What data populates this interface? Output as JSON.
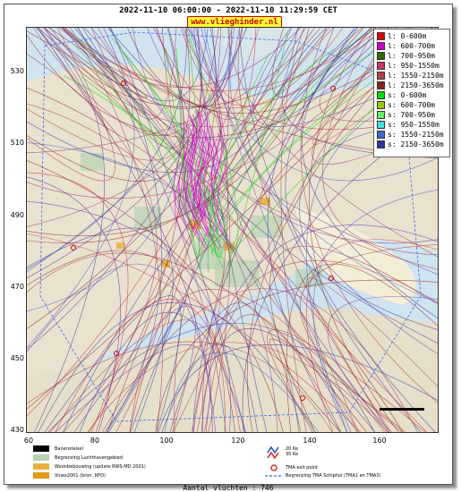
{
  "header": {
    "title": "2022-11-10 06:00:00 - 2022-11-10 11:29:59 CET",
    "site_label": "www.vlieghinder.nl"
  },
  "axes": {
    "y_ticks": [
      "530",
      "510",
      "490",
      "470",
      "450",
      "430"
    ],
    "x_ticks": [
      "60",
      "80",
      "100",
      "120",
      "140",
      "160"
    ]
  },
  "legend": {
    "items": [
      {
        "label": "l: 0-600m",
        "color": "#dd0000"
      },
      {
        "label": "l: 600-700m",
        "color": "#cc00cc"
      },
      {
        "label": "l: 700-950m",
        "color": "#336600"
      },
      {
        "label": "l: 950-1550m",
        "color": "#cc3366"
      },
      {
        "label": "l: 1550-2150m",
        "color": "#aa4444"
      },
      {
        "label": "l: 2150-3650m",
        "color": "#882222"
      },
      {
        "label": "s: 0-600m",
        "color": "#00dd00"
      },
      {
        "label": "s: 600-700m",
        "color": "#99cc00"
      },
      {
        "label": "s: 700-950m",
        "color": "#66ee66"
      },
      {
        "label": "s: 950-1550m",
        "color": "#44dddd"
      },
      {
        "label": "s: 1550-2150m",
        "color": "#4466cc"
      },
      {
        "label": "s: 2150-3650m",
        "color": "#333399"
      }
    ]
  },
  "map_legend": {
    "runway": "Banenstelsel",
    "airport_boundary": "Begrenzing Luchthavengebied",
    "housing": "Woonbebouwing (update RWS-MD 2001)",
    "vinex": "Vinex2001 (bron: RPD)",
    "ke20": "20 Ke",
    "ke35": "35 Ke",
    "tma_exit": "TMA exit point",
    "tma_boundary": "Begrenzing TMA Schiphol  (TMA1 en TMA3)"
  },
  "footer": {
    "count": "Aantal vluchten : 746"
  }
}
